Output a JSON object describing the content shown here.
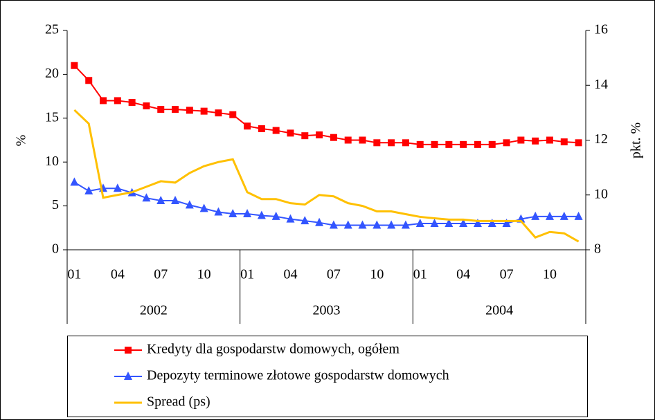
{
  "chart_data": {
    "type": "line",
    "y_label": "%",
    "y2_label": "pkt. %",
    "categories": [
      "01",
      null,
      null,
      "04",
      null,
      null,
      "07",
      null,
      null,
      "10",
      null,
      null,
      "01",
      null,
      null,
      "04",
      null,
      null,
      "07",
      null,
      null,
      "10",
      null,
      null,
      "01",
      null,
      null,
      "04",
      null,
      null,
      "07",
      null,
      null,
      "10",
      null,
      null
    ],
    "x_groups": [
      "2002",
      "2003",
      "2004"
    ],
    "ylim": [
      0,
      25
    ],
    "yticks": [
      0,
      5,
      10,
      15,
      20,
      25
    ],
    "y2lim": [
      8,
      16
    ],
    "y2ticks": [
      8,
      10,
      12,
      14,
      16
    ],
    "series": [
      {
        "name": "Kredyty dla gospodarstw domowych, ogółem",
        "color": "#ff0000",
        "marker": "square",
        "values": [
          21.0,
          19.3,
          17.0,
          17.0,
          16.8,
          16.4,
          16.0,
          16.0,
          15.9,
          15.8,
          15.6,
          15.4,
          14.1,
          13.8,
          13.6,
          13.3,
          13.0,
          13.1,
          12.8,
          12.5,
          12.5,
          12.2,
          12.2,
          12.2,
          12.0,
          12.0,
          12.0,
          12.0,
          12.0,
          12.0,
          12.2,
          12.5,
          12.4,
          12.5,
          12.3,
          12.2
        ]
      },
      {
        "name": "Depozyty terminowe złotowe gospodarstw domowych",
        "color": "#3355ff",
        "marker": "triangle",
        "values": [
          7.7,
          6.7,
          7.0,
          7.0,
          6.5,
          5.9,
          5.6,
          5.6,
          5.1,
          4.7,
          4.3,
          4.1,
          4.1,
          3.9,
          3.8,
          3.5,
          3.3,
          3.1,
          2.8,
          2.8,
          2.8,
          2.8,
          2.8,
          2.8,
          3.0,
          3.0,
          3.0,
          3.0,
          3.0,
          3.0,
          3.0,
          3.5,
          3.8,
          3.8,
          3.8,
          3.8
        ]
      },
      {
        "name": "Spread (ps)",
        "color": "#ffc000",
        "axis": "y2",
        "values": [
          13.1,
          12.6,
          9.9,
          10.0,
          10.1,
          10.3,
          10.5,
          10.45,
          10.8,
          11.05,
          11.2,
          11.3,
          10.1,
          9.85,
          9.85,
          9.7,
          9.65,
          10.0,
          9.95,
          9.7,
          9.6,
          9.4,
          9.4,
          9.3,
          9.2,
          9.15,
          9.1,
          9.1,
          9.05,
          9.05,
          9.05,
          9.05,
          8.45,
          8.65,
          8.6,
          8.3
        ]
      }
    ]
  }
}
